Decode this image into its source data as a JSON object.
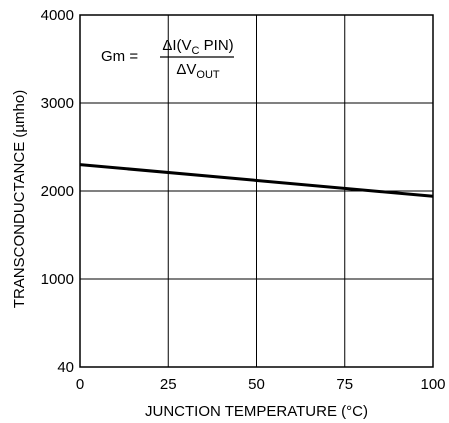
{
  "chart_data": {
    "type": "line",
    "xlabel": "JUNCTION TEMPERATURE (°C)",
    "ylabel": "TRANSCONDUCTANCE (µmho)",
    "xlim": [
      0,
      100
    ],
    "ylim": [
      40,
      4000
    ],
    "x_ticks": [
      0,
      25,
      50,
      75,
      100
    ],
    "x_tick_labels": [
      "0",
      "25",
      "50",
      "75",
      "100"
    ],
    "y_ticks": [
      40,
      1000,
      2000,
      3000,
      4000
    ],
    "y_tick_labels": [
      "40",
      "1000",
      "2000",
      "3000",
      "4000"
    ],
    "grid": true,
    "series": [
      {
        "x": [
          0,
          100
        ],
        "y": [
          2300,
          1940
        ],
        "color": "#000000"
      }
    ],
    "annotation": {
      "lhs": "Gm =",
      "numerator": {
        "pre": "ΔI(V",
        "sub": "C",
        "post": " PIN)"
      },
      "denominator": {
        "pre": "ΔV",
        "sub": "OUT"
      }
    }
  }
}
